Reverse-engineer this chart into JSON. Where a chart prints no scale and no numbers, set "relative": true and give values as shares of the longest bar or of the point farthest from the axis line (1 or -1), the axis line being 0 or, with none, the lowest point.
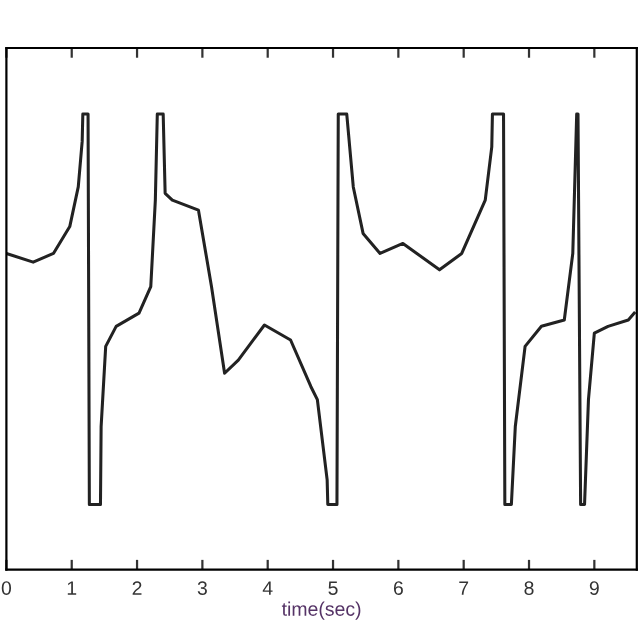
{
  "chart_data": {
    "type": "line",
    "relative": true,
    "xlabel": "time(sec)",
    "xlim": [
      0,
      9.65
    ],
    "xticks": [
      0,
      1,
      2,
      3,
      4,
      5,
      6,
      7,
      8,
      9
    ],
    "grid": false,
    "legend": false,
    "marker": "none",
    "line_style": "solid",
    "series": [
      {
        "color": "#222222",
        "x": [
          0,
          0.41,
          0.72,
          0.97,
          1.1,
          1.16,
          1.17,
          1.25,
          1.27,
          1.44,
          1.45,
          1.52,
          1.68,
          2.03,
          2.21,
          2.28,
          2.31,
          2.4,
          2.43,
          2.54,
          2.94,
          3.14,
          3.34,
          3.55,
          3.95,
          4.35,
          4.66,
          4.76,
          4.91,
          4.92,
          5.06,
          5.08,
          5.21,
          5.31,
          5.46,
          5.72,
          6.07,
          6.63,
          6.97,
          7.33,
          7.43,
          7.44,
          7.61,
          7.63,
          7.73,
          7.79,
          7.94,
          8.19,
          8.54,
          8.67,
          8.73,
          8.75,
          8.79,
          8.85,
          8.91,
          9.0,
          9.21,
          9.52,
          9.61
        ],
        "values": [
          0.694,
          0.675,
          0.694,
          0.753,
          0.84,
          0.94,
          1.0,
          1.0,
          0.143,
          0.143,
          0.314,
          0.49,
          0.534,
          0.563,
          0.621,
          0.811,
          1.0,
          1.0,
          0.826,
          0.811,
          0.789,
          0.621,
          0.431,
          0.46,
          0.537,
          0.504,
          0.402,
          0.373,
          0.197,
          0.143,
          0.143,
          1.0,
          1.0,
          0.84,
          0.738,
          0.694,
          0.716,
          0.658,
          0.694,
          0.811,
          0.928,
          1.0,
          1.0,
          0.143,
          0.143,
          0.314,
          0.49,
          0.534,
          0.548,
          0.694,
          1.0,
          1.0,
          0.143,
          0.143,
          0.373,
          0.519,
          0.534,
          0.548,
          0.563
        ]
      }
    ]
  }
}
